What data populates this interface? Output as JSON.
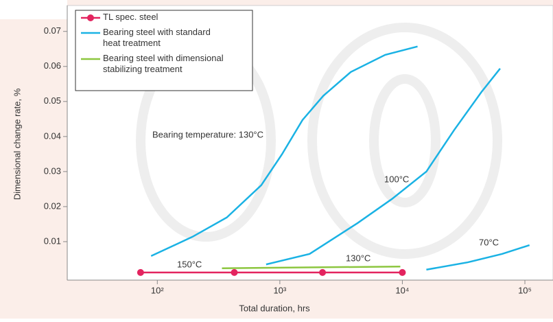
{
  "chart_data": {
    "type": "line",
    "xlabel": "Total duration, hrs",
    "ylabel": "Dimensional change rate, %",
    "xscale": "log",
    "xlim": [
      18.4,
      157000
    ],
    "ylim": [
      0,
      0.077
    ],
    "xticks": [
      {
        "value": 100,
        "label": "10²"
      },
      {
        "value": 1000,
        "label": "10³"
      },
      {
        "value": 10000,
        "label": "10⁴"
      },
      {
        "value": 100000,
        "label": "10⁵"
      }
    ],
    "yticks": [
      0.01,
      0.02,
      0.03,
      0.04,
      0.05,
      0.06,
      0.07
    ],
    "legend": "upper left",
    "series": [
      {
        "name": "TL spec. steel",
        "color": "#e3245f",
        "marker": true,
        "x": [
          73,
          425,
          2230,
          10000
        ],
        "values": [
          0.0012,
          0.0012,
          0.0012,
          0.0012
        ]
      },
      {
        "name": "Bearing steel with standard heat treatment",
        "color": "#1ab2e4",
        "marker": false,
        "x": [
          89,
          194,
          369,
          705,
          1040,
          1530,
          2260,
          3790,
          7240,
          13300
        ],
        "values": [
          0.0059,
          0.0114,
          0.0169,
          0.0261,
          0.0349,
          0.0447,
          0.0516,
          0.0584,
          0.0633,
          0.0657
        ]
      },
      {
        "name": null,
        "color": "#1ab2e4",
        "marker": false,
        "x": [
          773,
          1750,
          4310,
          8240,
          15700,
          26400,
          44200,
          62800
        ],
        "values": [
          0.0035,
          0.0065,
          0.0153,
          0.0222,
          0.03,
          0.0418,
          0.0527,
          0.0594
        ]
      },
      {
        "name": null,
        "color": "#1ab2e4",
        "marker": false,
        "x": [
          15700,
          34200,
          65300,
          109000
        ],
        "values": [
          0.002,
          0.0041,
          0.0065,
          0.009
        ]
      },
      {
        "name": "Bearing steel with dimensional stabilizing treatment",
        "color": "#8cc63f",
        "marker": false,
        "x": [
          337,
          9620
        ],
        "values": [
          0.0024,
          0.0029
        ]
      }
    ],
    "annotations": [
      "Bearing temperature: 130°C",
      "100°C",
      "70°C",
      "150°C",
      "130°C"
    ]
  }
}
